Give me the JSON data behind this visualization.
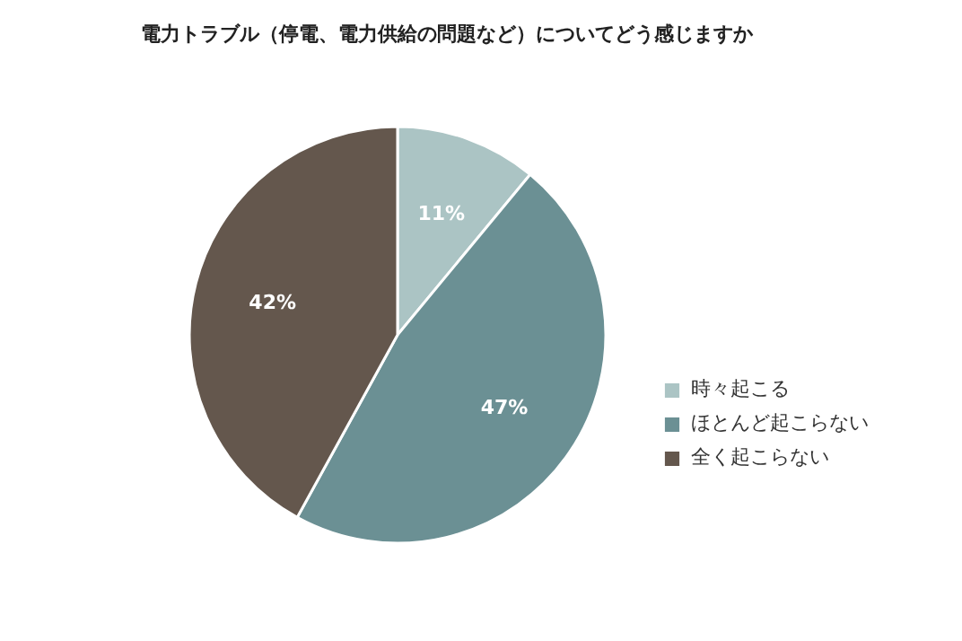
{
  "chart_data": {
    "type": "pie",
    "title": "電力トラブル（停電、電力供給の問題など）についてどう感じますか",
    "categories": [
      "時々起こる",
      "ほとんど起こらない",
      "全く起こらない"
    ],
    "values": [
      11,
      47,
      42
    ],
    "colors": [
      "#abc4c4",
      "#6b9094",
      "#64574d"
    ],
    "value_labels": [
      "11%",
      "47%",
      "42%"
    ],
    "legend": "right"
  }
}
